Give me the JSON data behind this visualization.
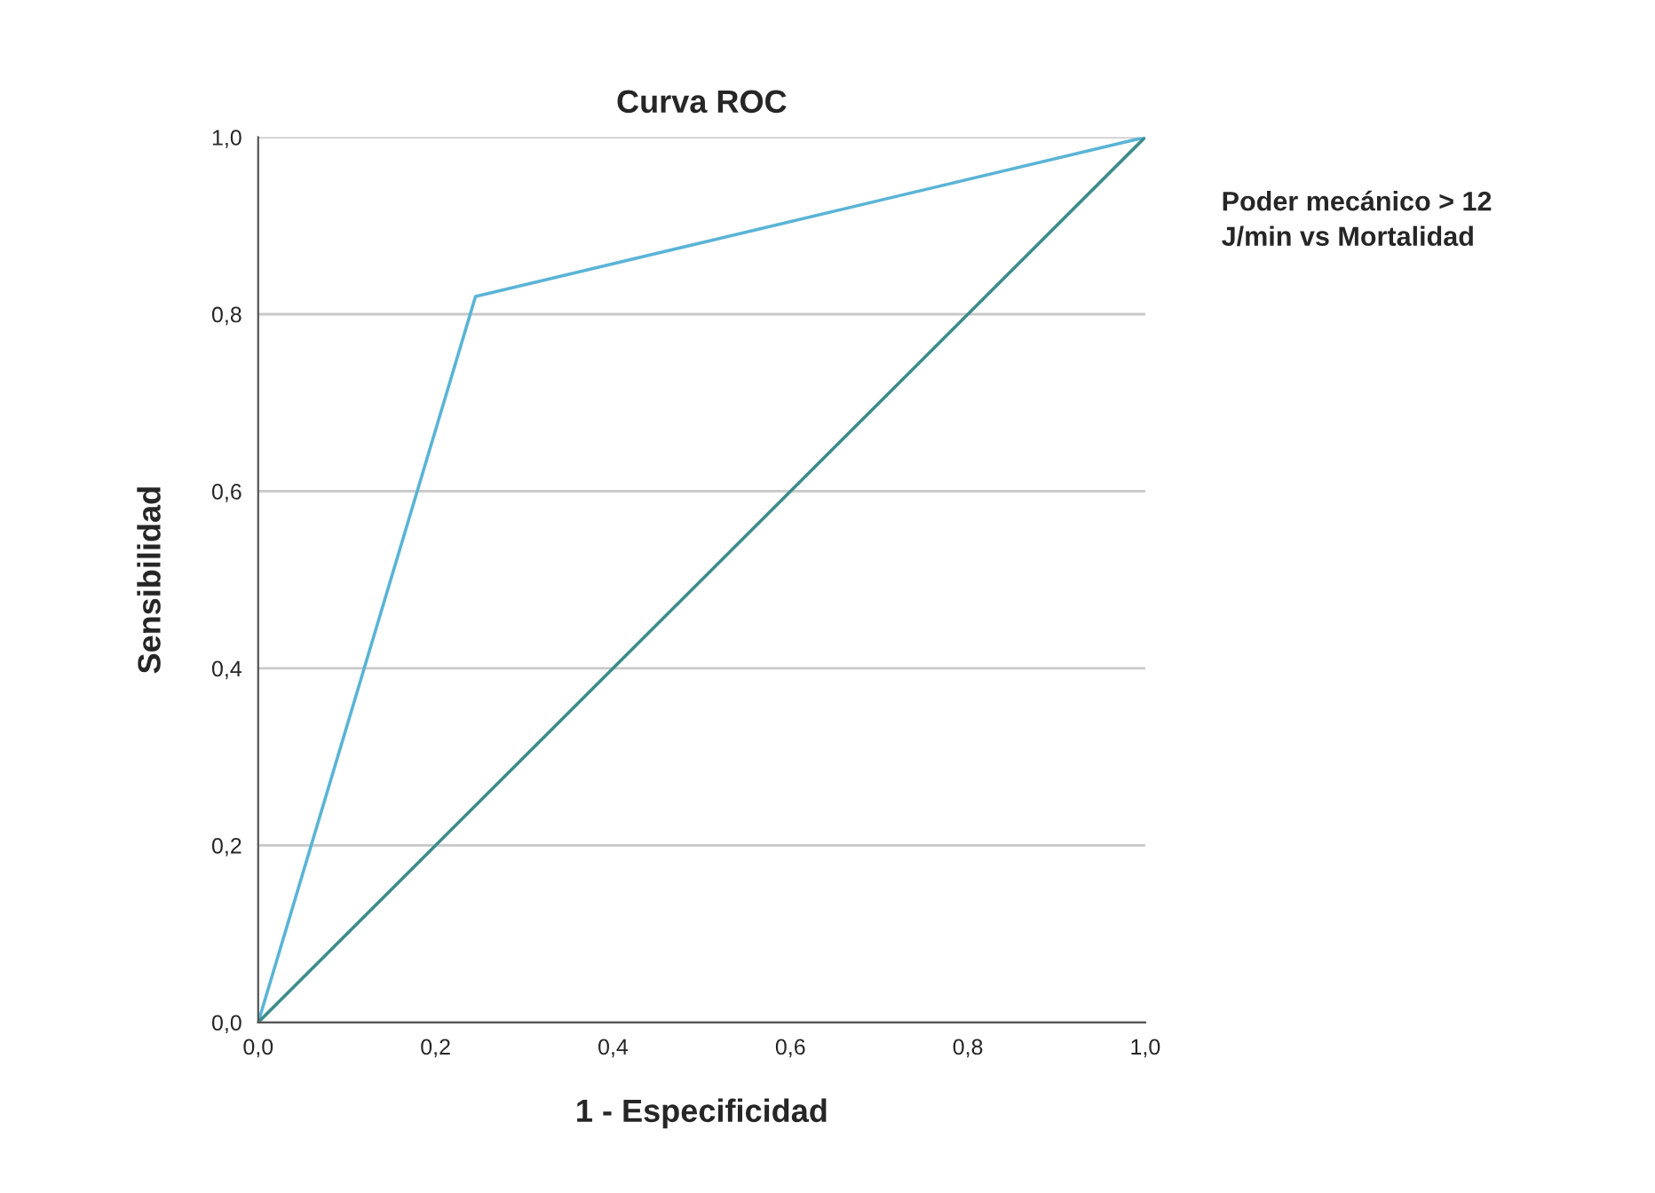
{
  "chart_data": {
    "type": "line",
    "title": "Curva ROC",
    "xlabel": "1 - Especificidad",
    "ylabel": "Sensibilidad",
    "annotations": [
      "Poder mecánico > 12\nJ/min vs Mortalidad"
    ],
    "series": [
      {
        "x": [
          0,
          0.245,
          1
        ],
        "values": [
          0,
          0.82,
          1
        ],
        "color": "#5ab4d6"
      },
      {
        "x": [
          0,
          1
        ],
        "values": [
          0,
          1
        ],
        "color": "#3d8c8c"
      }
    ],
    "xlim": [
      0,
      1
    ],
    "ylim": [
      0,
      1
    ],
    "xticks": [
      {
        "value": 0,
        "label": "0,0"
      },
      {
        "value": 0.2,
        "label": "0,2"
      },
      {
        "value": 0.4,
        "label": "0,4"
      },
      {
        "value": 0.6,
        "label": "0,6"
      },
      {
        "value": 0.8,
        "label": "0,8"
      },
      {
        "value": 1,
        "label": "1,0"
      }
    ],
    "yticks": [
      {
        "value": 0,
        "label": "0,0"
      },
      {
        "value": 0.2,
        "label": "0,2"
      },
      {
        "value": 0.4,
        "label": "0,4"
      },
      {
        "value": 0.6,
        "label": "0,6"
      },
      {
        "value": 0.8,
        "label": "0,8"
      },
      {
        "value": 1,
        "label": "1,0"
      }
    ],
    "grid": "y",
    "marker": "none",
    "line_style": "solid"
  }
}
